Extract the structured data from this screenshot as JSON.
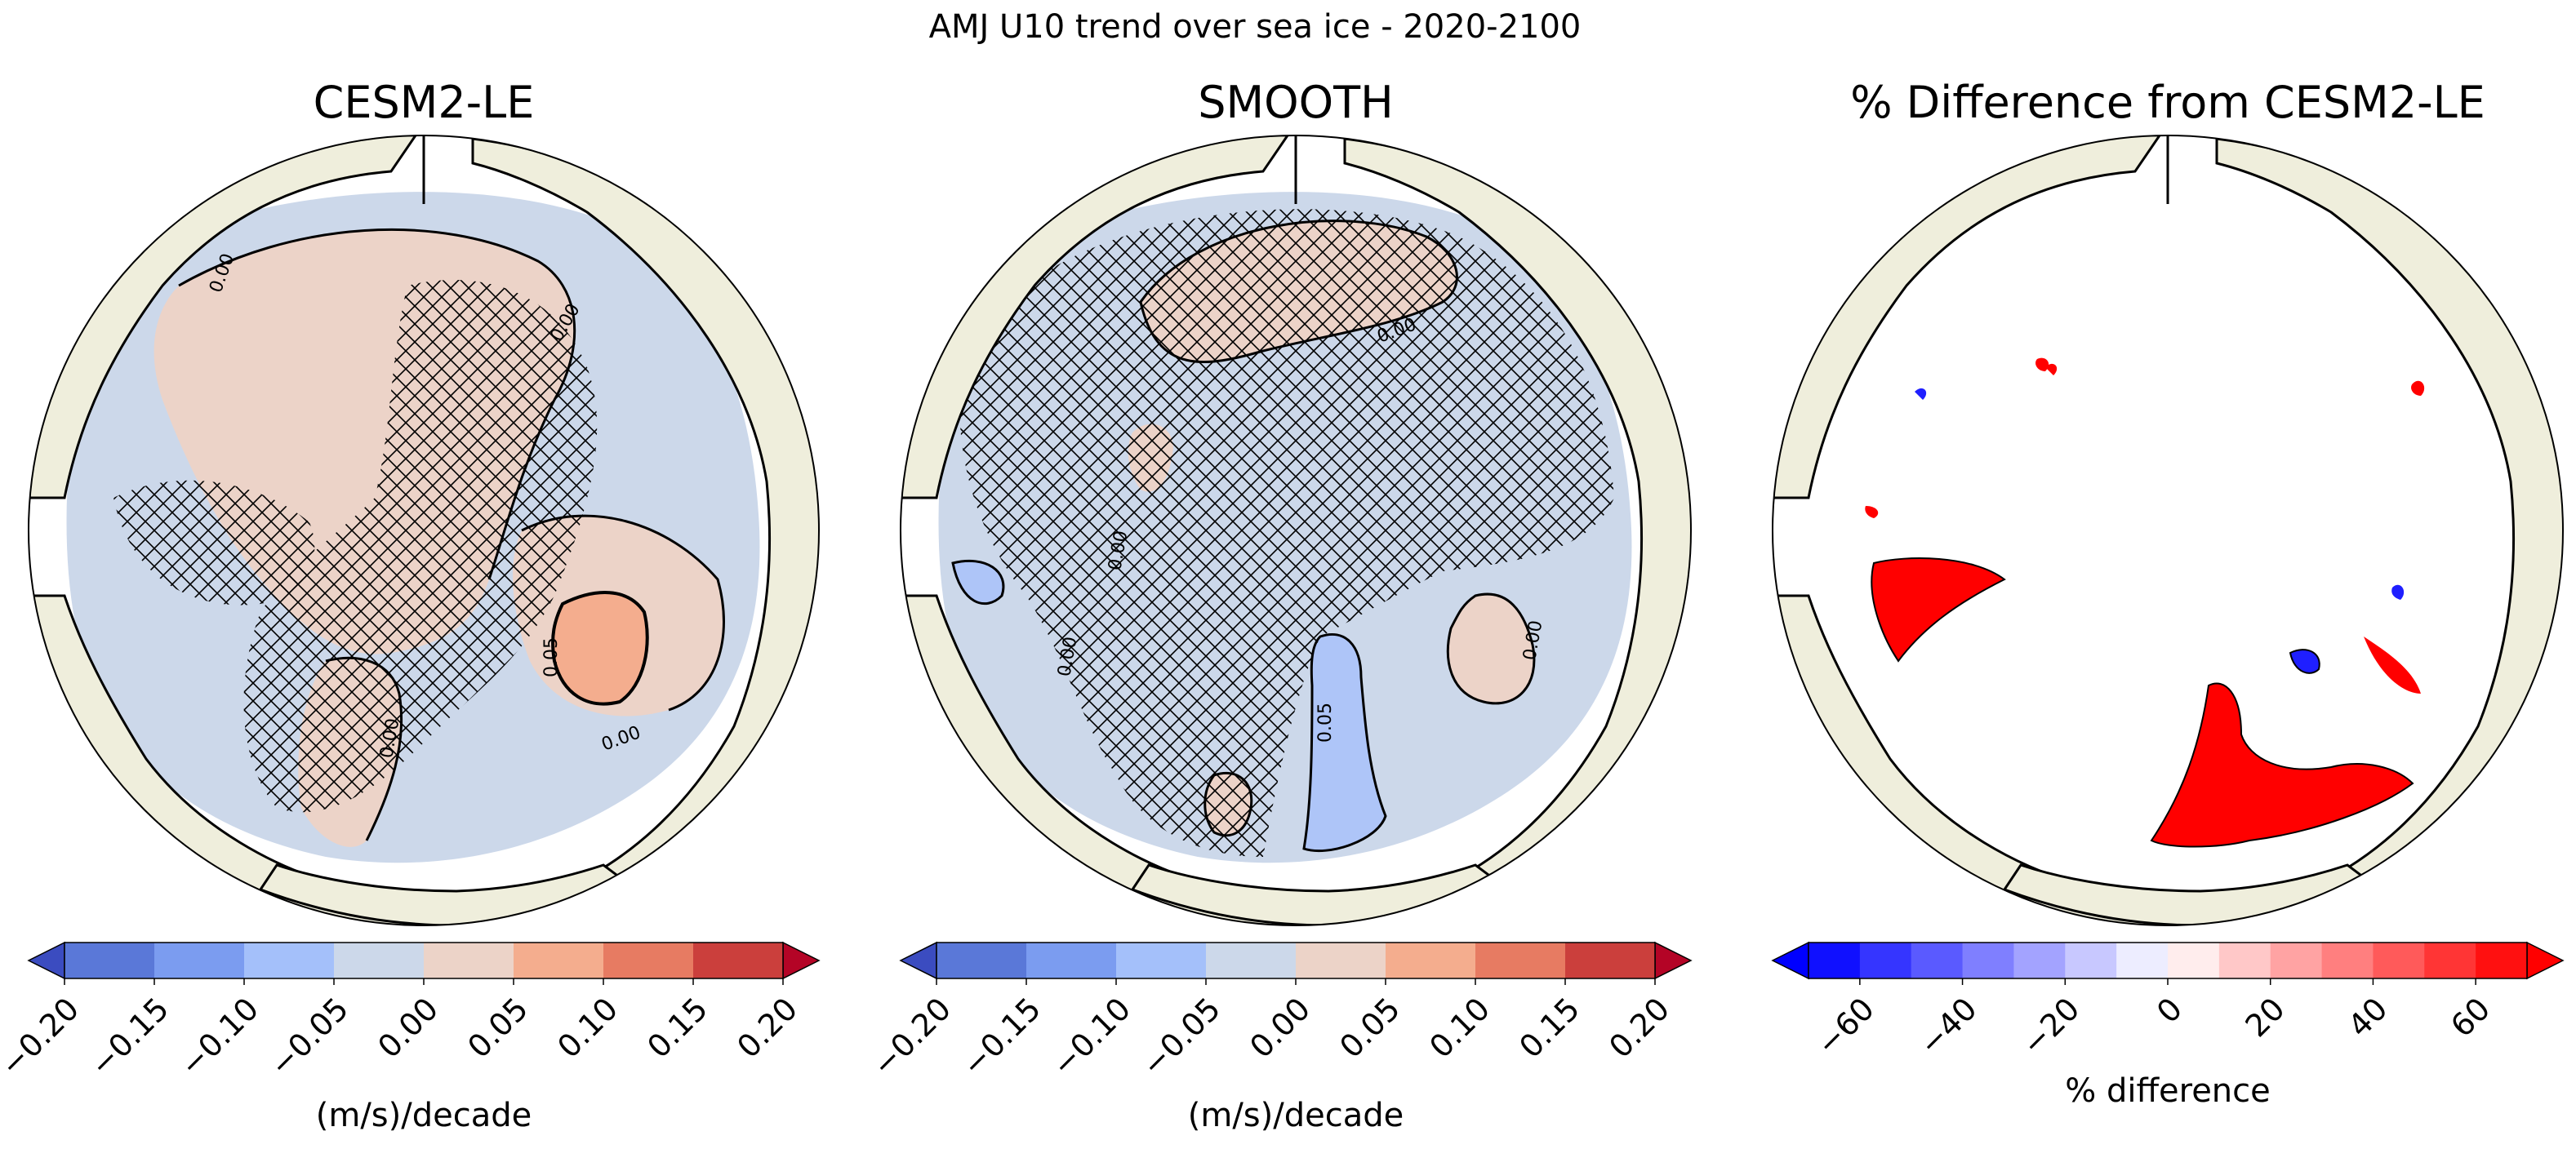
{
  "figure": {
    "suptitle": "AMJ U10 trend over sea ice - 2020-2100"
  },
  "colors": {
    "land": "#efeedc",
    "ice_zero_neg": "#ccd8ea",
    "ice_zero_pos": "#ecd3c8",
    "pos_005_010": "#f4ad8e",
    "neg_010_005": "#aec5f8",
    "diff_pos": "#ff0000",
    "diff_neg": "#1f1fff"
  },
  "chart_data": [
    {
      "type": "heatmap",
      "title": "CESM2-LE",
      "projection": "north polar stereographic",
      "hatching": "cross-hatch over most of the central Arctic and Atlantic sector",
      "contour_labels": [
        "0.00",
        "0.00",
        "0.00",
        "0.05",
        "0.00"
      ],
      "colorbar": {
        "label": "(m/s)/decade",
        "extend": "both",
        "levels": [
          -0.2,
          -0.15,
          -0.1,
          -0.05,
          0.0,
          0.05,
          0.1,
          0.15,
          0.2
        ],
        "tick_labels": [
          "−0.20",
          "−0.15",
          "−0.10",
          "−0.05",
          "0.00",
          "0.05",
          "0.10",
          "0.15",
          "0.20"
        ],
        "colors": [
          "#5a78d8",
          "#7b9cf0",
          "#a4c0fa",
          "#ccd8ea",
          "#ecd3c8",
          "#f4ad8e",
          "#e77b62",
          "#cb3f3c"
        ],
        "under_color": "#3b4cc0",
        "over_color": "#b40426"
      }
    },
    {
      "type": "heatmap",
      "title": "SMOOTH",
      "projection": "north polar stereographic",
      "hatching": "cross-hatch over nearly all ice-covered ocean",
      "contour_labels": [
        "0.00",
        "0.00",
        "0.00",
        "0.05",
        "0.00"
      ],
      "colorbar": {
        "label": "(m/s)/decade",
        "extend": "both",
        "levels": [
          -0.2,
          -0.15,
          -0.1,
          -0.05,
          0.0,
          0.05,
          0.1,
          0.15,
          0.2
        ],
        "tick_labels": [
          "−0.20",
          "−0.15",
          "−0.10",
          "−0.05",
          "0.00",
          "0.05",
          "0.10",
          "0.15",
          "0.20"
        ],
        "colors": [
          "#5a78d8",
          "#7b9cf0",
          "#a4c0fa",
          "#ccd8ea",
          "#ecd3c8",
          "#f4ad8e",
          "#e77b62",
          "#cb3f3c"
        ],
        "under_color": "#3b4cc0",
        "over_color": "#b40426"
      }
    },
    {
      "type": "heatmap",
      "title": "% Difference from CESM2-LE",
      "projection": "north polar stereographic",
      "colorbar": {
        "label": "% difference",
        "extend": "both",
        "levels": [
          -70,
          -60,
          -50,
          -40,
          -30,
          -20,
          -10,
          0,
          10,
          20,
          30,
          40,
          50,
          60,
          70
        ],
        "tick_labels": [
          "−60",
          "−40",
          "−20",
          "0",
          "20",
          "40",
          "60"
        ],
        "tick_values": [
          -60,
          -40,
          -20,
          0,
          20,
          40,
          60
        ],
        "colors": [
          "#1010ff",
          "#3535ff",
          "#5a5aff",
          "#7f7fff",
          "#a3a3ff",
          "#c8c8ff",
          "#ededff",
          "#ffeded",
          "#ffc8c8",
          "#ffa3a3",
          "#ff7f7f",
          "#ff5a5a",
          "#ff3535",
          "#ff1010"
        ],
        "under_color": "#0000ff",
        "over_color": "#ff0000"
      }
    }
  ]
}
